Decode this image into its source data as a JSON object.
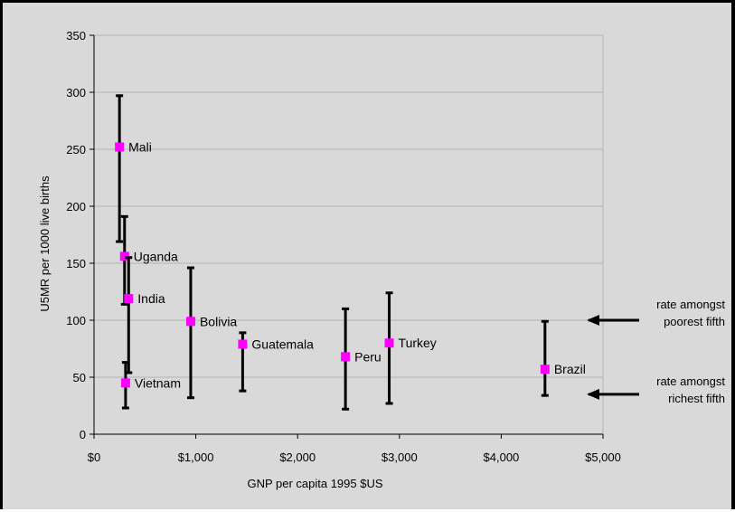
{
  "chart_data": {
    "type": "scatter",
    "title": "",
    "xlabel": "GNP per capita 1995 $US",
    "ylabel": "U5MR per 1000 live births",
    "xlim": [
      0,
      5000
    ],
    "ylim": [
      0,
      350
    ],
    "x_ticks": [
      0,
      1000,
      2000,
      3000,
      4000,
      5000
    ],
    "x_tick_labels": [
      "$0",
      "$1,000",
      "$2,000",
      "$3,000",
      "$4,000",
      "$5,000"
    ],
    "y_ticks": [
      0,
      50,
      100,
      150,
      200,
      250,
      300,
      350
    ],
    "y_tick_labels": [
      "0",
      "50",
      "100",
      "150",
      "200",
      "250",
      "300",
      "350"
    ],
    "grid": true,
    "marker_color": "#ff00ff",
    "errorbar_color": "#000000",
    "points": [
      {
        "label": "Mali",
        "x": 250,
        "y": 252,
        "high": 297,
        "low": 169
      },
      {
        "label": "Uganda",
        "x": 300,
        "y": 156,
        "high": 191,
        "low": 114
      },
      {
        "label": "India",
        "x": 340,
        "y": 119,
        "high": 155,
        "low": 54
      },
      {
        "label": "Vietnam",
        "x": 310,
        "y": 45,
        "high": 63,
        "low": 23
      },
      {
        "label": "Bolivia",
        "x": 950,
        "y": 99,
        "high": 146,
        "low": 32
      },
      {
        "label": "Guatemala",
        "x": 1460,
        "y": 79,
        "high": 89,
        "low": 38
      },
      {
        "label": "Peru",
        "x": 2470,
        "y": 68,
        "high": 110,
        "low": 22
      },
      {
        "label": "Turkey",
        "x": 2900,
        "y": 80,
        "high": 124,
        "low": 27
      },
      {
        "label": "Brazil",
        "x": 4430,
        "y": 57,
        "high": 99,
        "low": 34
      }
    ],
    "annotations": [
      {
        "lines": [
          "rate amongst",
          "poorest fifth"
        ],
        "y": 100
      },
      {
        "lines": [
          "rate amongst",
          "richest fifth"
        ],
        "y": 35
      }
    ]
  }
}
